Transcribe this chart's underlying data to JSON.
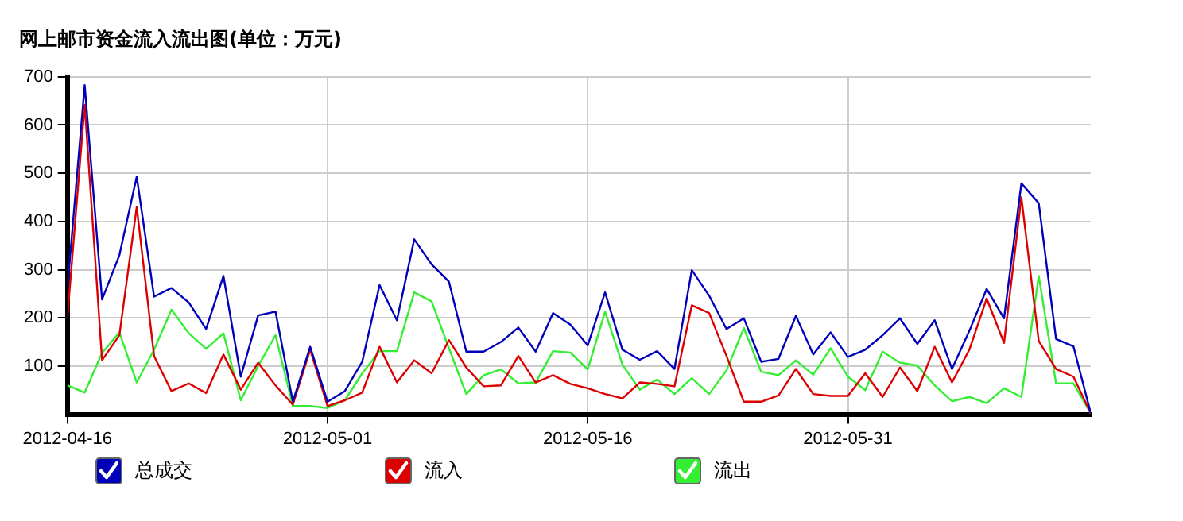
{
  "chart_data": {
    "type": "line",
    "title": "网上邮市资金流入流出图(单位：万元)",
    "x": [
      "2012-04-16",
      "2012-04-17",
      "2012-04-18",
      "2012-04-19",
      "2012-04-20",
      "2012-04-21",
      "2012-04-22",
      "2012-04-23",
      "2012-04-24",
      "2012-04-25",
      "2012-04-26",
      "2012-04-27",
      "2012-04-28",
      "2012-04-29",
      "2012-04-30",
      "2012-05-01",
      "2012-05-02",
      "2012-05-03",
      "2012-05-04",
      "2012-05-05",
      "2012-05-06",
      "2012-05-07",
      "2012-05-08",
      "2012-05-09",
      "2012-05-10",
      "2012-05-11",
      "2012-05-12",
      "2012-05-13",
      "2012-05-14",
      "2012-05-15",
      "2012-05-16",
      "2012-05-17",
      "2012-05-18",
      "2012-05-19",
      "2012-05-20",
      "2012-05-21",
      "2012-05-22",
      "2012-05-23",
      "2012-05-24",
      "2012-05-25",
      "2012-05-26",
      "2012-05-27",
      "2012-05-28",
      "2012-05-29",
      "2012-05-30",
      "2012-05-31",
      "2012-06-01",
      "2012-06-02",
      "2012-06-03",
      "2012-06-04",
      "2012-06-05",
      "2012-06-06",
      "2012-06-07",
      "2012-06-08",
      "2012-06-09",
      "2012-06-10",
      "2012-06-11",
      "2012-06-12",
      "2012-06-13",
      "2012-06-14"
    ],
    "series": [
      {
        "name": "总成交",
        "color": "#0000bb",
        "values": [
          260,
          683,
          238,
          330,
          493,
          244,
          262,
          232,
          177,
          287,
          78,
          205,
          213,
          26,
          140,
          26,
          48,
          109,
          268,
          195,
          363,
          311,
          275,
          130,
          130,
          150,
          180,
          130,
          210,
          186,
          143,
          253,
          134,
          113,
          131,
          94,
          299,
          246,
          177,
          199,
          109,
          115,
          204,
          124,
          170,
          119,
          134,
          164,
          199,
          146,
          195,
          94,
          173,
          260,
          199,
          479,
          438,
          156,
          141,
          2
        ]
      },
      {
        "name": "流入",
        "color": "#dd0000",
        "values": [
          200,
          642,
          112,
          164,
          430,
          121,
          48,
          64,
          44,
          124,
          51,
          107,
          60,
          20,
          134,
          17,
          29,
          45,
          140,
          66,
          112,
          85,
          154,
          97,
          58,
          60,
          121,
          66,
          81,
          63,
          54,
          42,
          33,
          66,
          63,
          58,
          226,
          210,
          121,
          26,
          26,
          39,
          94,
          42,
          38,
          38,
          85,
          36,
          97,
          48,
          140,
          66,
          134,
          240,
          148,
          450,
          152,
          94,
          78,
          2
        ]
      },
      {
        "name": "流出",
        "color": "#33ee33",
        "values": [
          60,
          45,
          127,
          170,
          66,
          134,
          217,
          168,
          136,
          168,
          29,
          100,
          164,
          17,
          17,
          13,
          29,
          85,
          131,
          131,
          253,
          234,
          137,
          42,
          81,
          93,
          64,
          66,
          131,
          128,
          93,
          213,
          103,
          51,
          72,
          42,
          75,
          42,
          91,
          179,
          88,
          81,
          112,
          82,
          137,
          78,
          50,
          130,
          107,
          101,
          60,
          27,
          36,
          23,
          54,
          36,
          287,
          64,
          64,
          2
        ]
      }
    ],
    "xlim": [
      "2012-04-16",
      "2012-06-14"
    ],
    "xticks": [
      "2012-04-16",
      "2012-05-01",
      "2012-05-16",
      "2012-05-31"
    ],
    "ylim": [
      0,
      700
    ],
    "yticks": [
      100,
      200,
      300,
      400,
      500,
      600,
      700
    ],
    "grid": true,
    "legend": "bottom",
    "marker": "none",
    "line_style": "solid"
  }
}
